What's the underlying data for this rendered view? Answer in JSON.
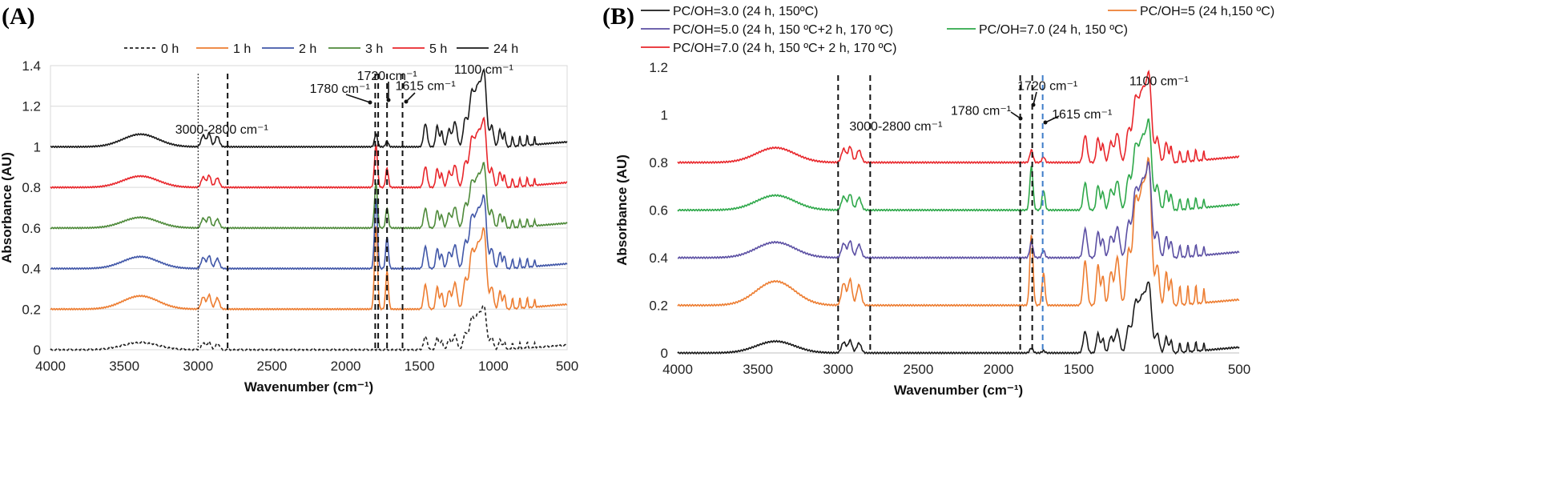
{
  "chart_data": [
    {
      "type": "line",
      "panel_label": "(A)",
      "xlabel": "Wavenumber (cm⁻¹)",
      "ylabel": "Absorbance (AU)",
      "xlim": [
        4000,
        500
      ],
      "ylim": [
        0,
        1.4
      ],
      "x_ticks": [
        4000,
        3500,
        3000,
        2500,
        2000,
        1500,
        1000,
        500
      ],
      "y_ticks": [
        0,
        0.2,
        0.4,
        0.6,
        0.8,
        1,
        1.2,
        1.4
      ],
      "y_tick_labels": [
        "0",
        "0.2",
        "0.4",
        "0.6",
        "0.8",
        "1",
        "1.2",
        "1.4"
      ],
      "grid": "horizontal",
      "legend": "top",
      "series": [
        {
          "name": "0 h",
          "color": "#222222",
          "dashed": true,
          "baseline": 0.0,
          "scale": 0.55,
          "carbonyl": 0.0
        },
        {
          "name": "1 h",
          "color": "#ED7D31",
          "dashed": false,
          "baseline": 0.2,
          "scale": 1.0,
          "carbonyl": 0.75
        },
        {
          "name": "2 h",
          "color": "#4157A8",
          "dashed": false,
          "baseline": 0.4,
          "scale": 0.9,
          "carbonyl": 0.7
        },
        {
          "name": "3 h",
          "color": "#4E8A3A",
          "dashed": false,
          "baseline": 0.6,
          "scale": 0.8,
          "carbonyl": 0.5
        },
        {
          "name": "5 h",
          "color": "#E8262B",
          "dashed": false,
          "baseline": 0.8,
          "scale": 0.85,
          "carbonyl": 0.45
        },
        {
          "name": "24 h",
          "color": "#1a1a1a",
          "dashed": false,
          "baseline": 1.0,
          "scale": 0.95,
          "carbonyl": 0.12
        }
      ],
      "vlines": [
        {
          "x": 3000,
          "style": "dotted"
        },
        {
          "x": 2800,
          "style": "dashed"
        },
        {
          "x": 1800,
          "style": "dashed"
        },
        {
          "x": 1780,
          "style": "dashed"
        },
        {
          "x": 1720,
          "style": "dashed"
        },
        {
          "x": 1615,
          "style": "dashed"
        }
      ],
      "annotations": [
        {
          "text": "3000-2800 cm⁻¹",
          "x": 2840,
          "y": 1.065
        },
        {
          "text": "1780 cm⁻¹",
          "x": 2040,
          "y": 1.265
        },
        {
          "text": "1720 cm⁻¹",
          "x": 1720,
          "y": 1.33
        },
        {
          "text": "1615 cm⁻¹",
          "x": 1460,
          "y": 1.28
        },
        {
          "text": "1100 cm⁻¹",
          "x": 1065,
          "y": 1.36
        }
      ]
    },
    {
      "type": "line",
      "panel_label": "(B)",
      "xlabel": "Wavenumber (cm⁻¹)",
      "ylabel": "Absorbance (AU)",
      "xlim": [
        4000,
        500
      ],
      "ylim": [
        0,
        1.2
      ],
      "x_ticks": [
        4000,
        3500,
        3000,
        2500,
        2000,
        1500,
        1000,
        500
      ],
      "y_ticks": [
        0,
        0.2,
        0.4,
        0.6,
        0.8,
        1,
        1.2
      ],
      "y_tick_labels": [
        "0",
        "0.2",
        "0.4",
        "0.6",
        "0.8",
        "1",
        "1.2"
      ],
      "grid": "none",
      "legend": "top",
      "series": [
        {
          "name": "PC/OH=3.0  (24 h, 150ºC)",
          "color": "#1a1a1a",
          "dashed": false,
          "baseline": 0.0,
          "scale": 0.75,
          "carbonyl": 0.05
        },
        {
          "name": "PC/OH=5  (24 h,150 ºC)",
          "color": "#ED7D31",
          "dashed": false,
          "baseline": 0.2,
          "scale": 1.55,
          "carbonyl": 0.35
        },
        {
          "name": "PC/OH=5.0  (24 h, 150 ºC+2 h, 170 ºC)",
          "color": "#5B4FA3",
          "dashed": false,
          "baseline": 0.4,
          "scale": 1.0,
          "carbonyl": 0.12
        },
        {
          "name": "PC/OH=7.0  (24 h, 150 ºC)",
          "color": "#2EA84A",
          "dashed": false,
          "baseline": 0.6,
          "scale": 0.95,
          "carbonyl": 0.35
        },
        {
          "name": "PC/OH=7.0  (24 h, 150 ºC+ 2 h, 170 ºC)",
          "color": "#E8262B",
          "dashed": false,
          "baseline": 0.8,
          "scale": 0.95,
          "carbonyl": 0.1
        }
      ],
      "vlines": [
        {
          "x": 3000,
          "style": "dashed",
          "color": "#111111"
        },
        {
          "x": 2800,
          "style": "dashed",
          "color": "#111111"
        },
        {
          "x": 1865,
          "style": "dashed",
          "color": "#111111"
        },
        {
          "x": 1790,
          "style": "dashed",
          "color": "#111111"
        },
        {
          "x": 1725,
          "style": "dashed",
          "color": "#3D7CC9"
        }
      ],
      "annotations": [
        {
          "text": "3000-2800 cm⁻¹",
          "x": 2640,
          "y": 0.935
        },
        {
          "text": "1780 cm⁻¹",
          "x": 2110,
          "y": 1.0
        },
        {
          "text": "1720 cm⁻¹",
          "x": 1695,
          "y": 1.105
        },
        {
          "text": "1615 cm⁻¹",
          "x": 1480,
          "y": 0.985
        },
        {
          "text": "1100 cm⁻¹",
          "x": 1000,
          "y": 1.125
        }
      ]
    }
  ]
}
